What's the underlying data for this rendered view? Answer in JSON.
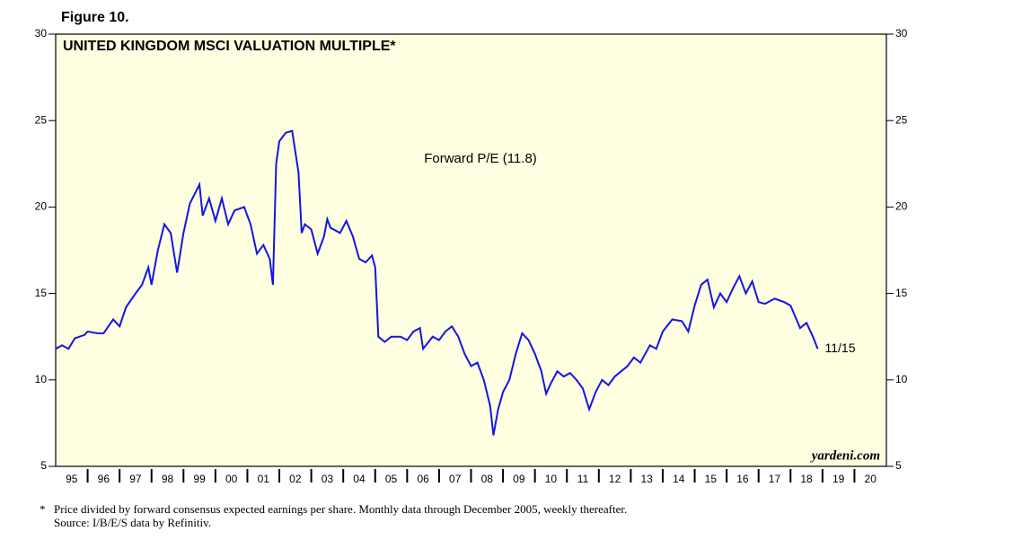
{
  "chart_data": {
    "type": "line",
    "figure_label": "Figure 10.",
    "title": "UNITED KINGDOM MSCI VALUATION MULTIPLE*",
    "annotation": "11/15",
    "source_mark": "yardeni.com",
    "footnote": "Price divided by forward consensus expected earnings per share. Monthly data through December 2005, weekly thereafter.",
    "footnote_marker": "*",
    "source": "Source: I/B/E/S data by Refinitiv.",
    "xlim": [
      1995,
      2021
    ],
    "xticks": [
      {
        "value": 1995.5,
        "label": "95"
      },
      {
        "value": 1996.5,
        "label": "96"
      },
      {
        "value": 1997.5,
        "label": "97"
      },
      {
        "value": 1998.5,
        "label": "98"
      },
      {
        "value": 1999.5,
        "label": "99"
      },
      {
        "value": 2000.5,
        "label": "00"
      },
      {
        "value": 2001.5,
        "label": "01"
      },
      {
        "value": 2002.5,
        "label": "02"
      },
      {
        "value": 2003.5,
        "label": "03"
      },
      {
        "value": 2004.5,
        "label": "04"
      },
      {
        "value": 2005.5,
        "label": "05"
      },
      {
        "value": 2006.5,
        "label": "06"
      },
      {
        "value": 2007.5,
        "label": "07"
      },
      {
        "value": 2008.5,
        "label": "08"
      },
      {
        "value": 2009.5,
        "label": "09"
      },
      {
        "value": 2010.5,
        "label": "10"
      },
      {
        "value": 2011.5,
        "label": "11"
      },
      {
        "value": 2012.5,
        "label": "12"
      },
      {
        "value": 2013.5,
        "label": "13"
      },
      {
        "value": 2014.5,
        "label": "14"
      },
      {
        "value": 2015.5,
        "label": "15"
      },
      {
        "value": 2016.5,
        "label": "16"
      },
      {
        "value": 2017.5,
        "label": "17"
      },
      {
        "value": 2018.5,
        "label": "18"
      },
      {
        "value": 2019.5,
        "label": "19"
      },
      {
        "value": 2020.5,
        "label": "20"
      }
    ],
    "ylim": [
      5,
      30
    ],
    "yticks": [
      5,
      10,
      15,
      20,
      25,
      30
    ],
    "x": [
      1995.0,
      1995.2,
      1995.4,
      1995.6,
      1995.9,
      1996.0,
      1996.3,
      1996.5,
      1996.8,
      1997.0,
      1997.2,
      1997.5,
      1997.7,
      1997.9,
      1998.0,
      1998.2,
      1998.4,
      1998.6,
      1998.8,
      1999.0,
      1999.2,
      1999.5,
      1999.6,
      1999.8,
      2000.0,
      2000.2,
      2000.4,
      2000.6,
      2000.9,
      2001.1,
      2001.3,
      2001.5,
      2001.7,
      2001.8,
      2001.9,
      2002.0,
      2002.2,
      2002.4,
      2002.6,
      2002.7,
      2002.8,
      2003.0,
      2003.2,
      2003.4,
      2003.5,
      2003.6,
      2003.9,
      2004.1,
      2004.3,
      2004.5,
      2004.7,
      2004.9,
      2005.0,
      2005.1,
      2005.3,
      2005.5,
      2005.8,
      2006.0,
      2006.2,
      2006.4,
      2006.5,
      2006.8,
      2007.0,
      2007.2,
      2007.4,
      2007.6,
      2007.8,
      2008.0,
      2008.2,
      2008.4,
      2008.6,
      2008.7,
      2008.85,
      2009.0,
      2009.2,
      2009.4,
      2009.6,
      2009.8,
      2010.0,
      2010.2,
      2010.35,
      2010.5,
      2010.7,
      2010.9,
      2011.1,
      2011.3,
      2011.5,
      2011.7,
      2011.9,
      2012.1,
      2012.3,
      2012.5,
      2012.7,
      2012.9,
      2013.1,
      2013.3,
      2013.6,
      2013.8,
      2014.0,
      2014.3,
      2014.6,
      2014.8,
      2015.0,
      2015.2,
      2015.4,
      2015.6,
      2015.8,
      2016.0,
      2016.2,
      2016.4,
      2016.6,
      2016.8,
      2017.0,
      2017.2,
      2017.5,
      2017.8,
      2018.0,
      2018.3,
      2018.5,
      2018.7,
      2018.85
    ],
    "series": [
      {
        "name": "Forward P/E (11.8)",
        "color": "#1414e6",
        "values": [
          11.8,
          12.0,
          11.8,
          12.4,
          12.6,
          12.8,
          12.7,
          12.7,
          13.5,
          13.1,
          14.2,
          15.0,
          15.5,
          16.5,
          15.5,
          17.5,
          19.0,
          18.5,
          16.2,
          18.5,
          20.2,
          21.3,
          19.5,
          20.5,
          19.2,
          20.5,
          19.0,
          19.8,
          20.0,
          19.0,
          17.3,
          17.8,
          17.0,
          15.5,
          22.5,
          23.8,
          24.3,
          24.4,
          22.0,
          18.5,
          19.0,
          18.7,
          17.3,
          18.3,
          19.3,
          18.8,
          18.5,
          19.2,
          18.3,
          17.0,
          16.8,
          17.2,
          16.5,
          12.5,
          12.2,
          12.5,
          12.5,
          12.3,
          12.8,
          13.0,
          11.8,
          12.5,
          12.3,
          12.8,
          13.1,
          12.5,
          11.5,
          10.8,
          11.0,
          10.0,
          8.5,
          6.8,
          8.3,
          9.3,
          10.0,
          11.5,
          12.7,
          12.3,
          11.5,
          10.5,
          9.2,
          9.8,
          10.5,
          10.2,
          10.4,
          10.0,
          9.5,
          8.3,
          9.3,
          10.0,
          9.7,
          10.2,
          10.5,
          10.8,
          11.3,
          11.0,
          12.0,
          11.8,
          12.8,
          13.5,
          13.4,
          12.8,
          14.3,
          15.5,
          15.8,
          14.2,
          15.0,
          14.5,
          15.3,
          16.0,
          15.0,
          15.7,
          14.5,
          14.4,
          14.7,
          14.5,
          14.3,
          13.0,
          13.3,
          12.5,
          11.8
        ]
      }
    ],
    "plot_background": "#fefee0"
  }
}
